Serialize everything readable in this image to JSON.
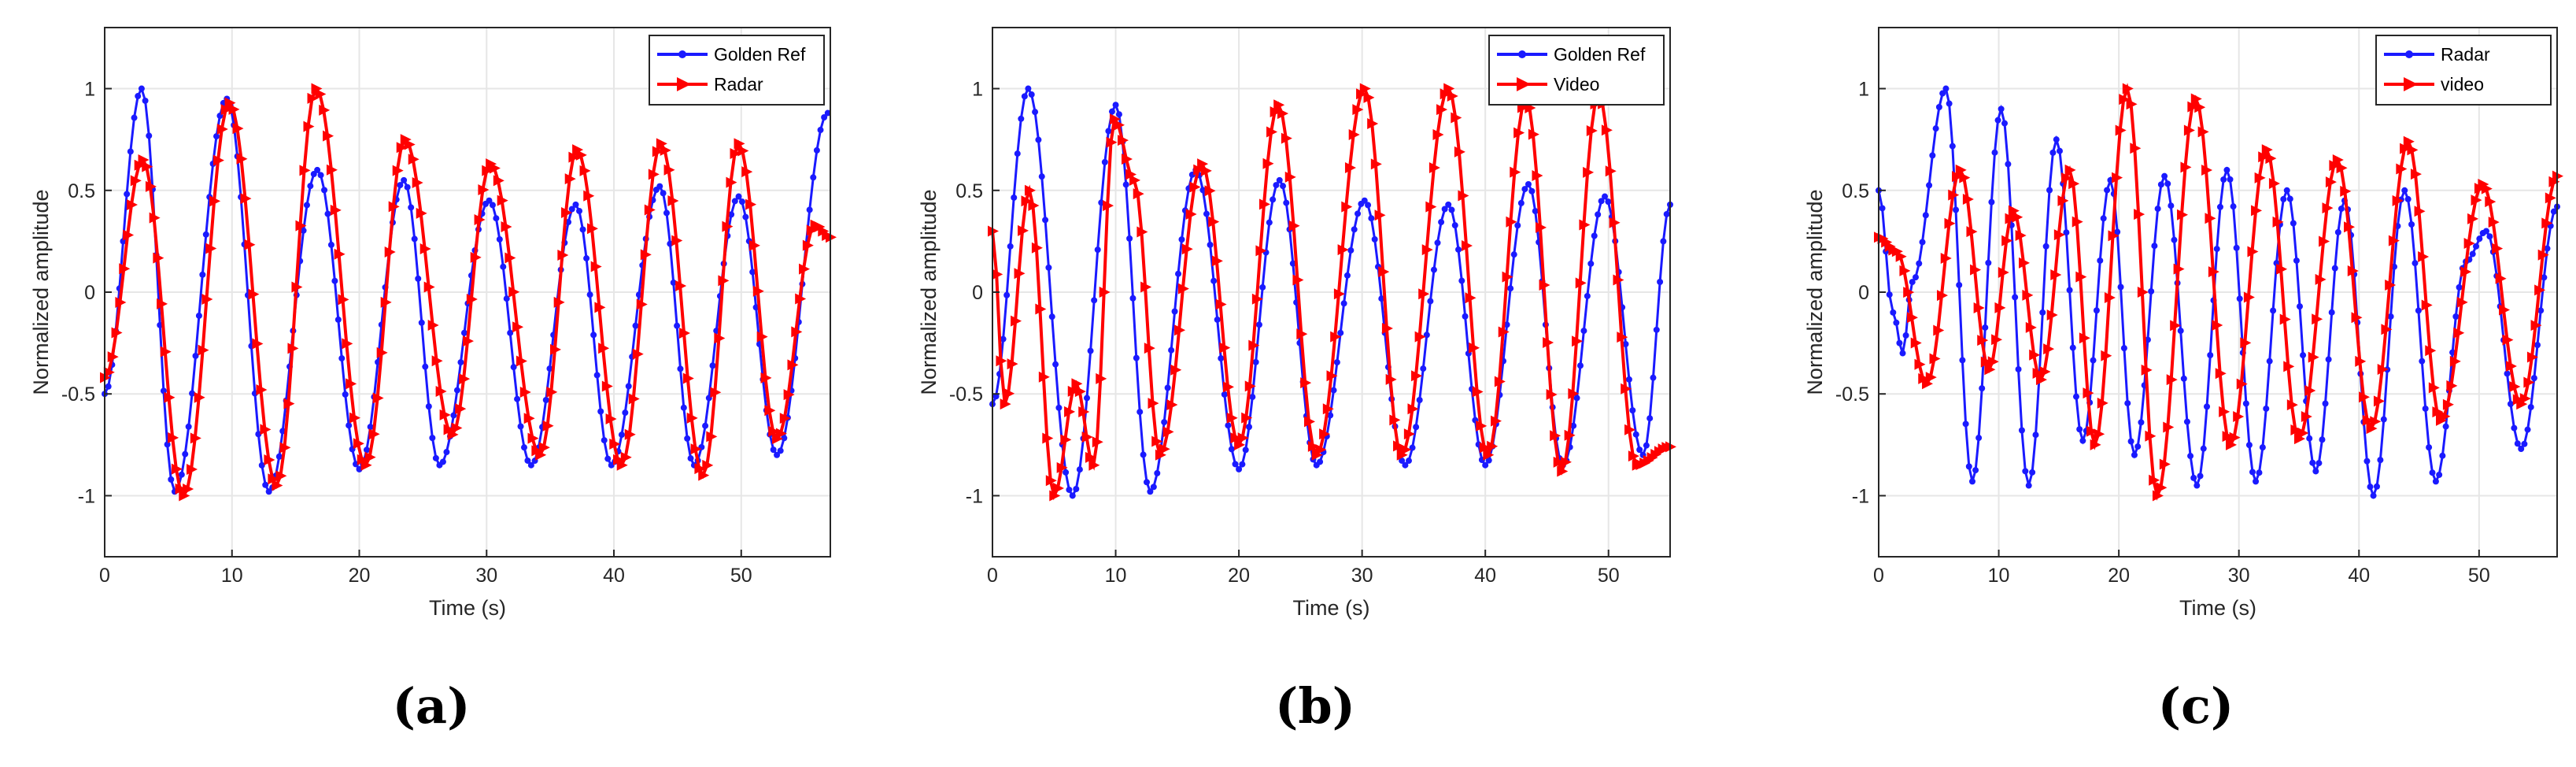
{
  "colors": {
    "blue": "#1a1aff",
    "red": "#ff0000",
    "grid": "#e6e6e6",
    "axis": "#262626"
  },
  "panels": [
    {
      "caption": "(a)",
      "chart_data": {
        "type": "line",
        "xlabel": "Time (s)",
        "ylabel": "Normalized amplitude",
        "xlim": [
          0,
          57
        ],
        "ylim": [
          -1.3,
          1.3
        ],
        "xticks": [
          0,
          10,
          20,
          30,
          40,
          50
        ],
        "yticks": [
          -1,
          -0.5,
          0,
          0.5,
          1
        ],
        "ytick_labels": [
          "-1",
          "-0.5",
          "0",
          "0.5",
          "1"
        ],
        "legend_position": "top-right",
        "series": [
          {
            "name": "Golden Ref",
            "color": "blue",
            "marker": "dot",
            "peaks": [
              [
                0,
                -0.5
              ],
              [
                2.9,
                1.0
              ],
              [
                5.5,
                -0.98
              ],
              [
                9.6,
                0.95
              ],
              [
                12.9,
                -0.98
              ],
              [
                16.7,
                0.6
              ],
              [
                20.0,
                -0.87
              ],
              [
                23.5,
                0.55
              ],
              [
                26.3,
                -0.85
              ],
              [
                30.2,
                0.45
              ],
              [
                33.5,
                -0.85
              ],
              [
                37.0,
                0.43
              ],
              [
                39.8,
                -0.85
              ],
              [
                43.6,
                0.52
              ],
              [
                46.3,
                -0.85
              ],
              [
                49.8,
                0.47
              ],
              [
                52.8,
                -0.8
              ],
              [
                56.8,
                0.88
              ]
            ]
          },
          {
            "name": "Radar",
            "color": "red",
            "marker": "triangle",
            "peaks": [
              [
                0,
                -0.42
              ],
              [
                3.0,
                0.65
              ],
              [
                6.2,
                -1.0
              ],
              [
                9.8,
                0.93
              ],
              [
                13.5,
                -0.95
              ],
              [
                16.6,
                1.0
              ],
              [
                20.5,
                -0.85
              ],
              [
                23.6,
                0.75
              ],
              [
                27.3,
                -0.7
              ],
              [
                30.3,
                0.63
              ],
              [
                34.2,
                -0.8
              ],
              [
                37.1,
                0.7
              ],
              [
                40.6,
                -0.85
              ],
              [
                43.7,
                0.73
              ],
              [
                47.0,
                -0.9
              ],
              [
                49.8,
                0.73
              ],
              [
                52.8,
                -0.72
              ],
              [
                55.8,
                0.33
              ],
              [
                57,
                0.27
              ]
            ]
          }
        ]
      }
    },
    {
      "caption": "(b)",
      "chart_data": {
        "type": "line",
        "xlabel": "Time (s)",
        "ylabel": "Normalized amplitude",
        "xlim": [
          0,
          55
        ],
        "ylim": [
          -1.3,
          1.3
        ],
        "xticks": [
          0,
          10,
          20,
          30,
          40,
          50
        ],
        "yticks": [
          -1,
          -0.5,
          0,
          0.5,
          1
        ],
        "ytick_labels": [
          "-1",
          "-0.5",
          "0",
          "0.5",
          "1"
        ],
        "legend_position": "top-right",
        "series": [
          {
            "name": "Golden Ref",
            "color": "blue",
            "marker": "dot",
            "peaks": [
              [
                0,
                -0.55
              ],
              [
                2.9,
                1.0
              ],
              [
                6.5,
                -1.0
              ],
              [
                10.0,
                0.92
              ],
              [
                12.8,
                -0.98
              ],
              [
                16.5,
                0.6
              ],
              [
                20.0,
                -0.87
              ],
              [
                23.3,
                0.55
              ],
              [
                26.3,
                -0.85
              ],
              [
                30.2,
                0.45
              ],
              [
                33.5,
                -0.85
              ],
              [
                37.0,
                0.43
              ],
              [
                40.0,
                -0.85
              ],
              [
                43.5,
                0.53
              ],
              [
                46.3,
                -0.85
              ],
              [
                49.7,
                0.47
              ],
              [
                52.8,
                -0.8
              ],
              [
                55,
                0.43
              ]
            ]
          },
          {
            "name": "Video",
            "color": "red",
            "marker": "triangle",
            "peaks": [
              [
                0,
                0.3
              ],
              [
                1.0,
                -0.55
              ],
              [
                3.0,
                0.5
              ],
              [
                5.0,
                -1.0
              ],
              [
                6.8,
                -0.45
              ],
              [
                8.2,
                -0.85
              ],
              [
                9.9,
                0.85
              ],
              [
                11.5,
                0.55
              ],
              [
                13.6,
                -0.8
              ],
              [
                17.0,
                0.63
              ],
              [
                20.0,
                -0.75
              ],
              [
                23.2,
                0.92
              ],
              [
                26.3,
                -0.8
              ],
              [
                30.2,
                1.0
              ],
              [
                33.2,
                -0.8
              ],
              [
                37.0,
                1.0
              ],
              [
                40.2,
                -0.8
              ],
              [
                43.3,
                0.95
              ],
              [
                46.2,
                -0.88
              ],
              [
                49.2,
                0.97
              ],
              [
                52.3,
                -0.85
              ],
              [
                55,
                -0.76
              ]
            ]
          }
        ]
      }
    },
    {
      "caption": "(c)",
      "chart_data": {
        "type": "line",
        "xlabel": "Time (s)",
        "ylabel": "Normalized amplitude",
        "xlim": [
          0,
          56.5
        ],
        "ylim": [
          -1.3,
          1.3
        ],
        "xticks": [
          0,
          10,
          20,
          30,
          40,
          50
        ],
        "yticks": [
          -1,
          -0.5,
          0,
          0.5,
          1
        ],
        "ytick_labels": [
          "-1",
          "-0.5",
          "0",
          "0.5",
          "1"
        ],
        "legend_position": "top-right",
        "series": [
          {
            "name": "Radar",
            "color": "blue",
            "marker": "dot",
            "peaks": [
              [
                0,
                0.5
              ],
              [
                1.2,
                -0.1
              ],
              [
                2.0,
                -0.3
              ],
              [
                2.8,
                0.05
              ],
              [
                5.6,
                1.0
              ],
              [
                7.8,
                -0.93
              ],
              [
                10.2,
                0.9
              ],
              [
                12.5,
                -0.95
              ],
              [
                14.8,
                0.75
              ],
              [
                17.0,
                -0.73
              ],
              [
                19.3,
                0.55
              ],
              [
                21.3,
                -0.8
              ],
              [
                23.8,
                0.57
              ],
              [
                26.5,
                -0.95
              ],
              [
                29.0,
                0.6
              ],
              [
                31.4,
                -0.93
              ],
              [
                34.0,
                0.5
              ],
              [
                36.4,
                -0.88
              ],
              [
                38.8,
                0.45
              ],
              [
                41.2,
                -1.0
              ],
              [
                43.8,
                0.5
              ],
              [
                46.4,
                -0.93
              ],
              [
                48.9,
                0.15
              ],
              [
                50.6,
                0.3
              ],
              [
                53.5,
                -0.77
              ],
              [
                56.5,
                0.42
              ]
            ]
          },
          {
            "name": "video",
            "color": "red",
            "marker": "triangle",
            "peaks": [
              [
                0,
                0.27
              ],
              [
                1.5,
                0.2
              ],
              [
                4.0,
                -0.45
              ],
              [
                6.8,
                0.6
              ],
              [
                9.2,
                -0.38
              ],
              [
                11.2,
                0.4
              ],
              [
                13.5,
                -0.43
              ],
              [
                15.9,
                0.6
              ],
              [
                18.0,
                -0.75
              ],
              [
                20.7,
                1.0
              ],
              [
                23.2,
                -1.0
              ],
              [
                26.4,
                0.95
              ],
              [
                29.3,
                -0.75
              ],
              [
                32.3,
                0.7
              ],
              [
                35.0,
                -0.72
              ],
              [
                38.2,
                0.65
              ],
              [
                41.0,
                -0.67
              ],
              [
                44.1,
                0.74
              ],
              [
                46.8,
                -0.63
              ],
              [
                50.3,
                0.53
              ],
              [
                53.5,
                -0.55
              ],
              [
                56.5,
                0.57
              ]
            ]
          }
        ]
      }
    }
  ]
}
